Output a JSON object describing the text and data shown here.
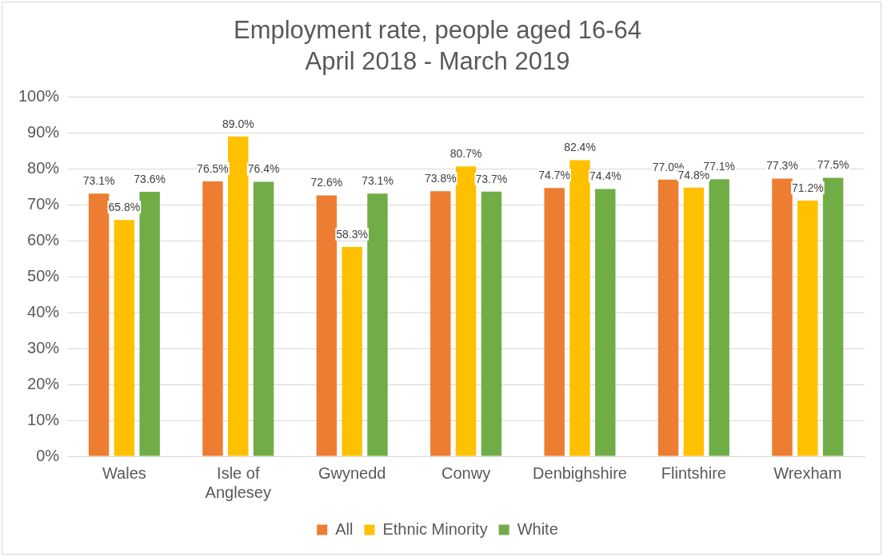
{
  "chart_data": {
    "type": "bar",
    "title": "Employment rate, people aged 16-64",
    "subtitle": "April 2018 - March 2019",
    "categories": [
      "Wales",
      "Isle of Anglesey",
      "Gwynedd",
      "Conwy",
      "Denbighshire",
      "Flintshire",
      "Wrexham"
    ],
    "series": [
      {
        "name": "All",
        "color": "#ed7d31",
        "values": [
          73.1,
          76.5,
          72.6,
          73.8,
          74.7,
          77.0,
          77.3
        ],
        "value_labels": [
          "73.1%",
          "76.5%",
          "72.6%",
          "73.8%",
          "74.7%",
          "77.0%",
          "77.3%"
        ]
      },
      {
        "name": "Ethnic Minority",
        "color": "#ffc000",
        "values": [
          65.8,
          89.0,
          58.3,
          80.7,
          82.4,
          74.8,
          71.2
        ],
        "value_labels": [
          "65.8%",
          "89.0%",
          "58.3%",
          "80.7%",
          "82.4%",
          "74.8%",
          "71.2%"
        ]
      },
      {
        "name": "White",
        "color": "#70ad47",
        "values": [
          73.6,
          76.4,
          73.1,
          73.7,
          74.4,
          77.1,
          77.5
        ],
        "value_labels": [
          "73.6%",
          "76.4%",
          "73.1%",
          "73.7%",
          "74.4%",
          "77.1%",
          "77.5%"
        ]
      }
    ],
    "ylim": [
      0,
      100
    ],
    "yticks": [
      {
        "value": 0,
        "label": "0%"
      },
      {
        "value": 10,
        "label": "10%"
      },
      {
        "value": 20,
        "label": "20%"
      },
      {
        "value": 30,
        "label": "30%"
      },
      {
        "value": 40,
        "label": "40%"
      },
      {
        "value": 50,
        "label": "50%"
      },
      {
        "value": 60,
        "label": "60%"
      },
      {
        "value": 70,
        "label": "70%"
      },
      {
        "value": 80,
        "label": "80%"
      },
      {
        "value": 90,
        "label": "90%"
      },
      {
        "value": 100,
        "label": "100%"
      }
    ],
    "grid": "y",
    "legend": "bottom"
  }
}
